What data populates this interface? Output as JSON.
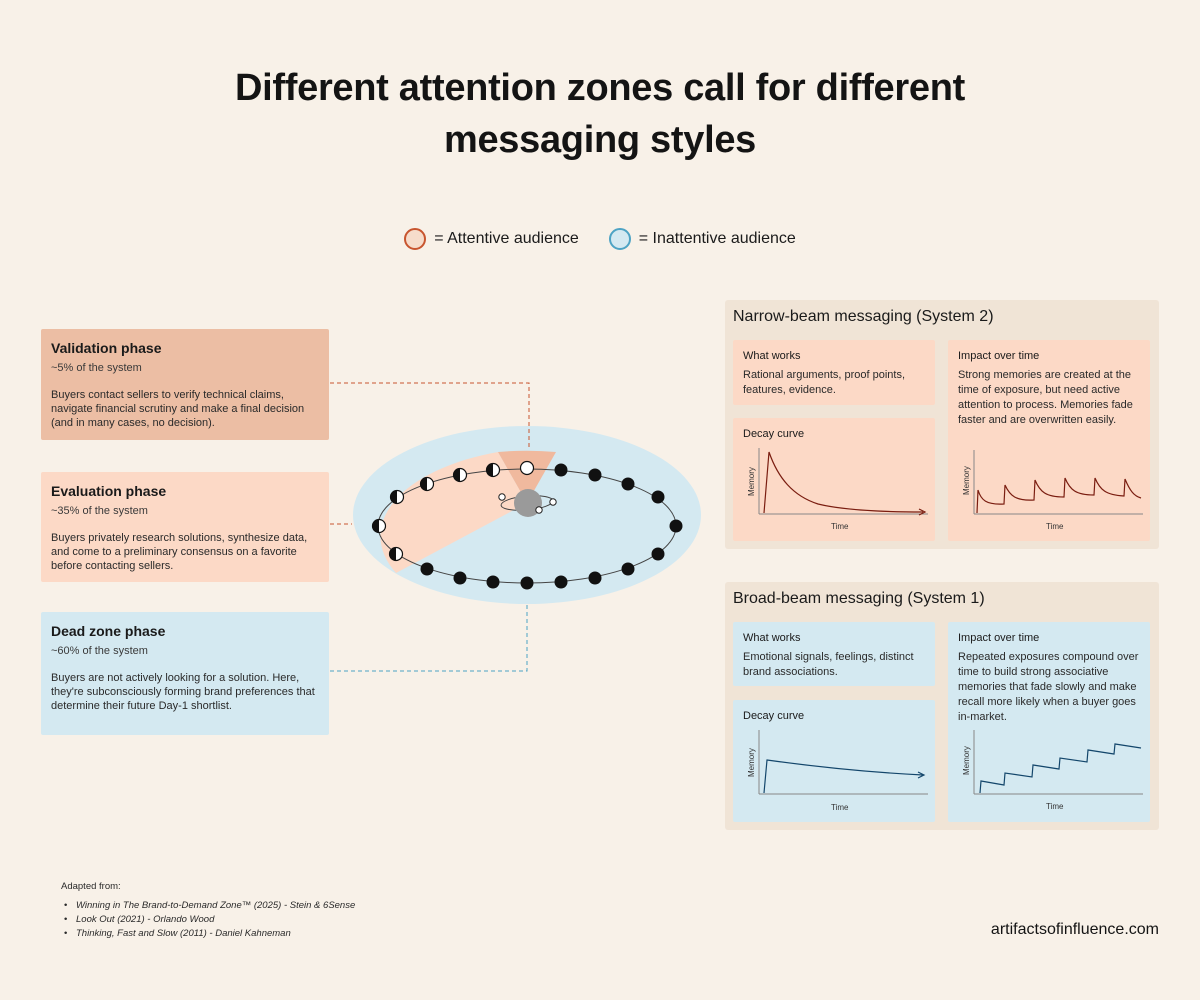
{
  "title_line1": "Different attention zones call for different",
  "title_line2": "messaging styles",
  "legend": {
    "attentive": "= Attentive audience",
    "inattentive": "= Inattentive audience",
    "attentive_color": "#c8552f",
    "inattentive_color": "#4da3c4"
  },
  "phases": [
    {
      "title": "Validation phase",
      "percent": "~5% of the system",
      "description": "Buyers contact sellers to verify technical claims, navigate financial scrutiny and make a final decision (and in many cases, no decision).",
      "color": "#ecbea4"
    },
    {
      "title": "Evaluation phase",
      "percent": "~35% of the system",
      "description": "Buyers privately research solutions, synthesize data, and come to a preliminary consensus on a favorite before contacting sellers.",
      "color": "#fcd9c6"
    },
    {
      "title": "Dead zone phase",
      "percent": "~60% of the system",
      "description": "Buyers are not actively looking for a solution. Here, they're subconsciously forming brand preferences that determine their future Day-1 shortlist.",
      "color": "#d4e9f1"
    }
  ],
  "narrow": {
    "title": "Narrow-beam messaging (System 2)",
    "what_works_title": "What works",
    "what_works_text": "Rational arguments, proof points, features, evidence.",
    "decay_title": "Decay curve",
    "impact_title": "Impact over time",
    "impact_text": "Strong memories are created at the time of exposure, but need active attention to process. Memories fade faster and are overwritten easily.",
    "axis_y": "Memory",
    "axis_x": "Time",
    "curve_color": "#7a1d10"
  },
  "broad": {
    "title": "Broad-beam messaging (System 1)",
    "what_works_title": "What works",
    "what_works_text": "Emotional signals, feelings, distinct brand associations.",
    "decay_title": "Decay curve",
    "impact_title": "Impact over time",
    "impact_text": "Repeated exposures compound over time to build strong associative memories that fade slowly and make recall more likely when a buyer goes in-market.",
    "axis_y": "Memory",
    "axis_x": "Time",
    "curve_color": "#13466b"
  },
  "footer": {
    "heading": "Adapted from:",
    "sources": [
      "Winning in The Brand-to-Demand Zone™ (2025) - Stein & 6Sense",
      "Look Out (2021) - Orlando Wood",
      "Thinking, Fast and Slow (2011) - Daniel Kahneman"
    ]
  },
  "site": "artifactsofinfluence.com"
}
